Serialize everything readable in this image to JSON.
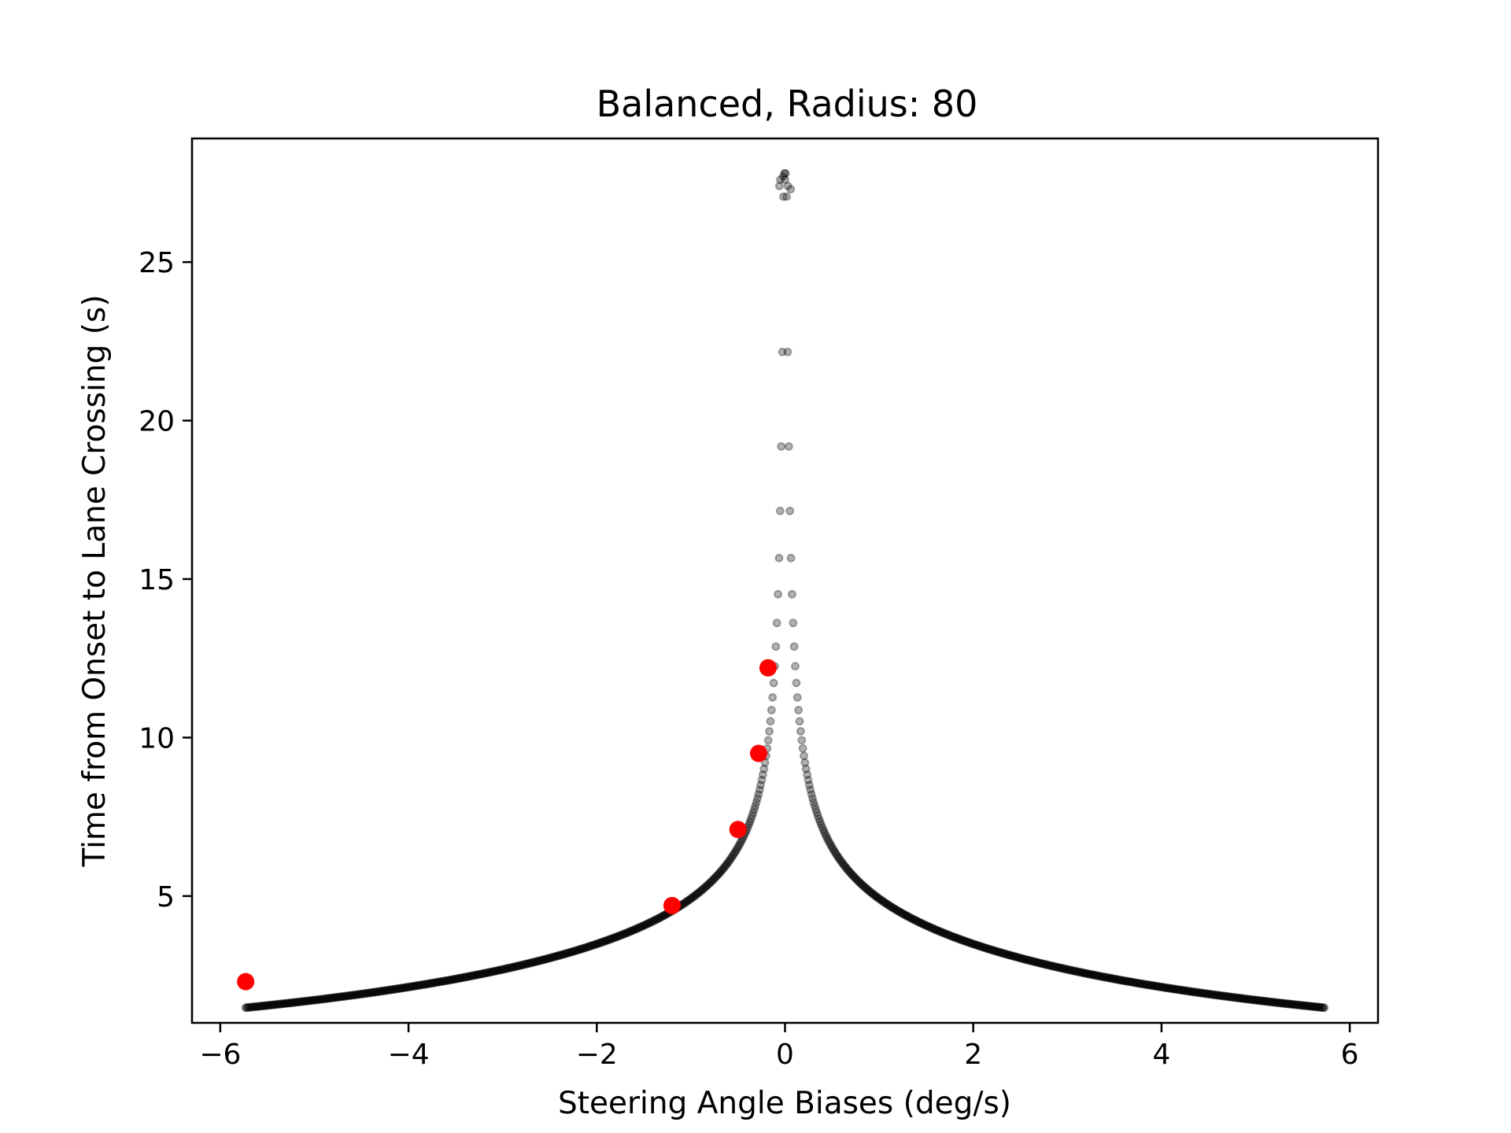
{
  "chart_data": {
    "type": "scatter",
    "title": "Balanced, Radius: 80",
    "xlabel": "Steering Angle Biases (deg/s)",
    "ylabel": "Time from Onset to Lane Crossing (s)",
    "xlim": [
      -6.3,
      6.3
    ],
    "ylim": [
      1.0,
      28.9
    ],
    "xticks": [
      {
        "value": -6,
        "label": "−6"
      },
      {
        "value": -4,
        "label": "−4"
      },
      {
        "value": -2,
        "label": "−2"
      },
      {
        "value": 0,
        "label": "0"
      },
      {
        "value": 2,
        "label": "2"
      },
      {
        "value": 4,
        "label": "4"
      },
      {
        "value": 6,
        "label": "6"
      }
    ],
    "yticks": [
      {
        "value": 5,
        "label": "5"
      },
      {
        "value": 10,
        "label": "10"
      },
      {
        "value": 15,
        "label": "15"
      },
      {
        "value": 20,
        "label": "20"
      },
      {
        "value": 25,
        "label": "25"
      }
    ],
    "grid": false,
    "series": [
      {
        "color": "#000000",
        "opacity": 0.3,
        "marker": "hollow-circle",
        "x_range": [
          -5.73,
          5.73
        ],
        "point_count": 1000,
        "extra_points": [
          {
            "x": -0.05,
            "y": 27.6
          },
          {
            "x": -0.02,
            "y": 27.7
          },
          {
            "x": 0.0,
            "y": 27.6
          },
          {
            "x": 0.03,
            "y": 27.4
          },
          {
            "x": 0.06,
            "y": 27.3
          },
          {
            "x": -0.06,
            "y": 27.4
          }
        ]
      },
      {
        "color": "#ff0000",
        "opacity": 1.0,
        "marker": "filled-circle",
        "points": [
          {
            "x": -5.73,
            "y": 2.3
          },
          {
            "x": -1.2,
            "y": 4.7
          },
          {
            "x": -0.5,
            "y": 7.1
          },
          {
            "x": -0.28,
            "y": 9.5
          },
          {
            "x": -0.18,
            "y": 12.2
          }
        ]
      }
    ]
  }
}
